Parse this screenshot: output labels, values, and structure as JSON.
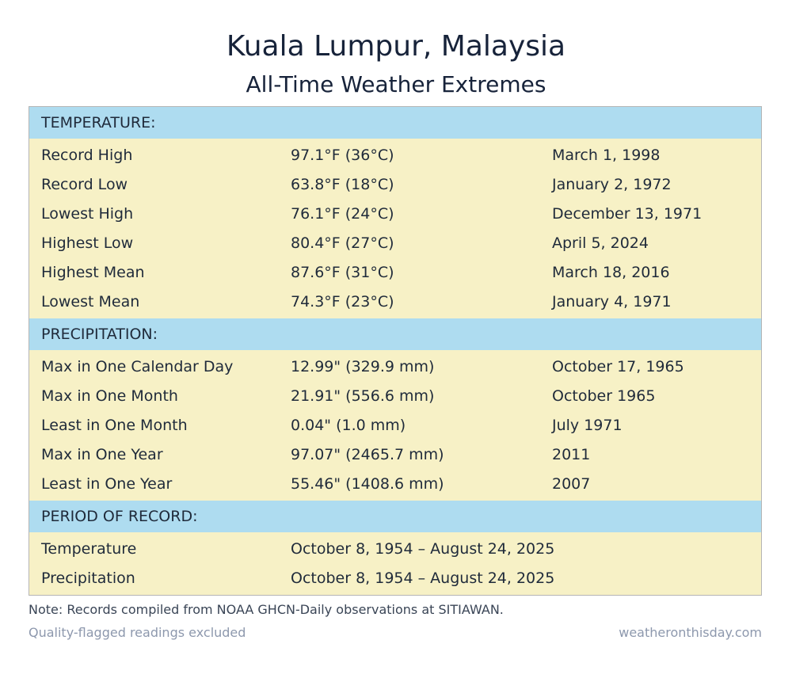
{
  "title": "Kuala Lumpur,  Malaysia",
  "subtitle": "All-Time Weather Extremes",
  "temperature": {
    "header": "TEMPERATURE:",
    "rows": [
      {
        "label": "Record High",
        "value": "97.1°F (36°C)",
        "date": "March 1, 1998"
      },
      {
        "label": "Record Low",
        "value": "63.8°F (18°C)",
        "date": "January 2, 1972"
      },
      {
        "label": "Lowest High",
        "value": "76.1°F (24°C)",
        "date": "December 13, 1971"
      },
      {
        "label": "Highest Low",
        "value": "80.4°F (27°C)",
        "date": "April 5, 2024"
      },
      {
        "label": "Highest Mean",
        "value": "87.6°F (31°C)",
        "date": "March 18, 2016"
      },
      {
        "label": "Lowest Mean",
        "value": "74.3°F (23°C)",
        "date": "January 4, 1971"
      }
    ]
  },
  "precipitation": {
    "header": "PRECIPITATION:",
    "rows": [
      {
        "label": "Max in One Calendar Day",
        "value": "12.99\" (329.9 mm)",
        "date": "October 17, 1965"
      },
      {
        "label": "Max in One Month",
        "value": "21.91\" (556.6 mm)",
        "date": "October 1965"
      },
      {
        "label": "Least in One Month",
        "value": "0.04\" (1.0 mm)",
        "date": "July 1971"
      },
      {
        "label": "Max in One Year",
        "value": "97.07\" (2465.7 mm)",
        "date": "2011"
      },
      {
        "label": "Least in One Year",
        "value": "55.46\" (1408.6 mm)",
        "date": "2007"
      }
    ]
  },
  "period": {
    "header": "PERIOD OF RECORD:",
    "rows": [
      {
        "label": "Temperature",
        "value": "October 8, 1954 – August 24, 2025"
      },
      {
        "label": "Precipitation",
        "value": "October 8, 1954 – August 24, 2025"
      }
    ]
  },
  "footer": {
    "note": "Note: Records compiled from NOAA GHCN-Daily observations at SITIAWAN.",
    "flag": "Quality-flagged readings excluded",
    "site": "weatheronthisday.com"
  }
}
